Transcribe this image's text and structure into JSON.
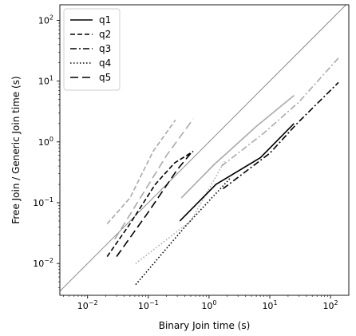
{
  "chart_data": {
    "type": "line",
    "title": "",
    "xlabel": "Binary Join time (s)",
    "ylabel": "Free Join / Generic Join time (s)",
    "xscale": "log",
    "yscale": "log",
    "xlim": [
      0.0035,
      200
    ],
    "ylim": [
      0.003,
      180
    ],
    "xticks": [
      {
        "value": 0.01,
        "base": "10",
        "exp": "−2"
      },
      {
        "value": 0.1,
        "base": "10",
        "exp": "−1"
      },
      {
        "value": 1,
        "base": "10",
        "exp": "0"
      },
      {
        "value": 10,
        "base": "10",
        "exp": "1"
      },
      {
        "value": 100,
        "base": "10",
        "exp": "2"
      }
    ],
    "yticks": [
      {
        "value": 0.01,
        "base": "10",
        "exp": "−2"
      },
      {
        "value": 0.1,
        "base": "10",
        "exp": "−1"
      },
      {
        "value": 1,
        "base": "10",
        "exp": "0"
      },
      {
        "value": 10,
        "base": "10",
        "exp": "1"
      },
      {
        "value": 100,
        "base": "10",
        "exp": "2"
      }
    ],
    "grid": false,
    "diagonal": {
      "from": 0.0035,
      "to": 200,
      "color": "#808080"
    },
    "legend": {
      "position": "top-left",
      "entries": [
        "q1",
        "q2",
        "q3",
        "q4",
        "q5"
      ]
    },
    "colors": {
      "free_join": "#000000",
      "generic_join": "#aaaaaa"
    },
    "series": [
      {
        "name": "q1",
        "dash": "solid",
        "group": "free_join",
        "points": [
          [
            0.33,
            0.05
          ],
          [
            1.3,
            0.2
          ],
          [
            7,
            0.55
          ],
          [
            25,
            2.0
          ]
        ]
      },
      {
        "name": "q2",
        "dash": "dashed",
        "group": "free_join",
        "points": [
          [
            0.021,
            0.013
          ],
          [
            0.05,
            0.045
          ],
          [
            0.13,
            0.2
          ],
          [
            0.27,
            0.45
          ],
          [
            0.55,
            0.7
          ]
        ]
      },
      {
        "name": "q3",
        "dash": "dashdot",
        "group": "free_join",
        "points": [
          [
            1.7,
            0.17
          ],
          [
            10,
            0.65
          ],
          [
            28,
            2.0
          ],
          [
            135,
            9.5
          ]
        ]
      },
      {
        "name": "q4",
        "dash": "dotted",
        "group": "free_join",
        "points": [
          [
            0.062,
            0.0045
          ],
          [
            0.4,
            0.04
          ],
          [
            2.2,
            0.25
          ]
        ]
      },
      {
        "name": "q5",
        "dash": "longdash",
        "group": "free_join",
        "points": [
          [
            0.03,
            0.013
          ],
          [
            0.1,
            0.07
          ],
          [
            0.3,
            0.35
          ],
          [
            0.5,
            0.65
          ]
        ]
      },
      {
        "name": "q1",
        "dash": "solid",
        "group": "generic_join",
        "points": [
          [
            0.35,
            0.12
          ],
          [
            1.2,
            0.42
          ],
          [
            6,
            1.8
          ],
          [
            25,
            5.8
          ]
        ]
      },
      {
        "name": "q2",
        "dash": "dashed",
        "group": "generic_join",
        "points": [
          [
            0.021,
            0.045
          ],
          [
            0.05,
            0.12
          ],
          [
            0.12,
            0.7
          ],
          [
            0.28,
            2.3
          ]
        ]
      },
      {
        "name": "q3",
        "dash": "dashdot",
        "group": "generic_join",
        "points": [
          [
            1.6,
            0.4
          ],
          [
            8,
            1.4
          ],
          [
            30,
            4.5
          ],
          [
            135,
            24
          ]
        ]
      },
      {
        "name": "q4",
        "dash": "dotted",
        "group": "generic_join",
        "points": [
          [
            0.062,
            0.01
          ],
          [
            0.5,
            0.05
          ],
          [
            1.8,
            0.48
          ]
        ]
      },
      {
        "name": "q5",
        "dash": "longdash",
        "group": "generic_join",
        "points": [
          [
            0.028,
            0.025
          ],
          [
            0.07,
            0.11
          ],
          [
            0.2,
            0.6
          ],
          [
            0.55,
            2.4
          ]
        ]
      }
    ]
  }
}
